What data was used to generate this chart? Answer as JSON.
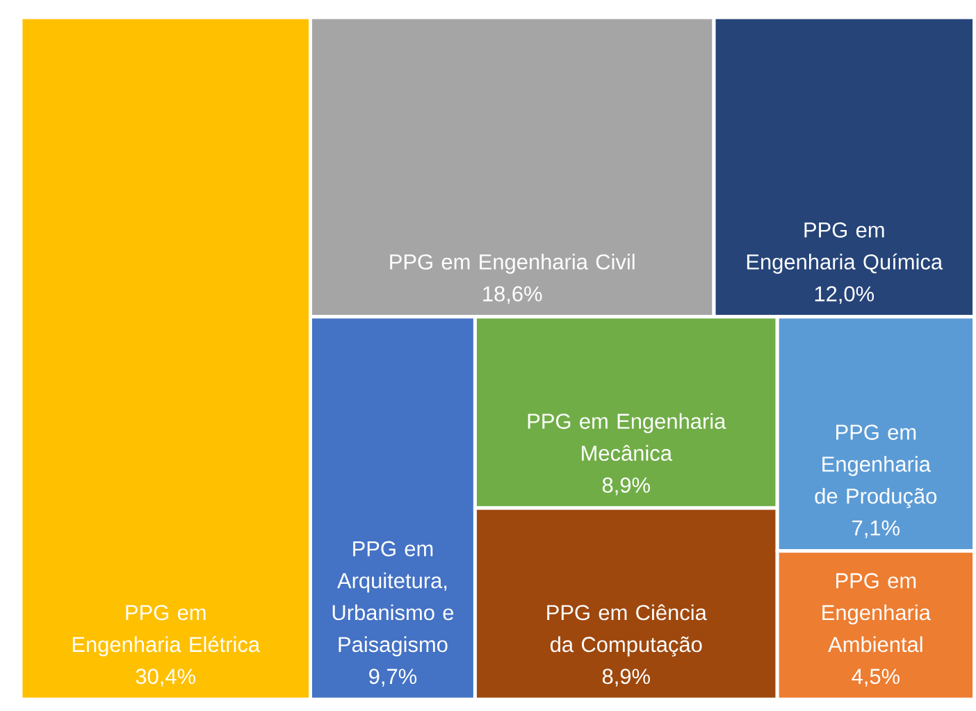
{
  "chart_data": {
    "type": "other",
    "categories": [
      "PPG em Engenharia Elétrica",
      "PPG em Engenharia Civil",
      "PPG em Engenharia Química",
      "PPG em Arquitetura, Urbanismo e Paisagismo",
      "PPG em Engenharia Mecânica",
      "PPG em Ciência da Computação",
      "PPG em Engenharia de Produção",
      "PPG em Engenharia Ambiental"
    ],
    "values": [
      30.4,
      18.6,
      12.0,
      9.7,
      8.9,
      8.9,
      7.1,
      4.5
    ],
    "value_labels": [
      "30,4%",
      "18,6%",
      "12,0%",
      "9,7%",
      "8,9%",
      "8,9%",
      "7,1%",
      "4,5%"
    ],
    "colors": [
      "#ffc000",
      "#a5a5a5",
      "#264478",
      "#4472c4",
      "#70ad47",
      "#9e480e",
      "#5b9bd5",
      "#ed7d31"
    ]
  }
}
